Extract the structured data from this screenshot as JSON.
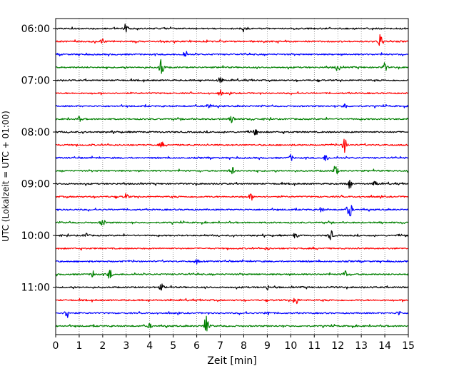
{
  "chart_data": {
    "type": "line",
    "title": "",
    "xlabel": "Zeit  [min]",
    "ylabel": "UTC (Lokalzeit = UTC + 01:00)",
    "xlim": [
      0,
      15
    ],
    "x_ticks": [
      "0",
      "1",
      "2",
      "3",
      "4",
      "5",
      "6",
      "7",
      "8",
      "9",
      "10",
      "11",
      "12",
      "13",
      "14",
      "15"
    ],
    "y_ticks": [
      {
        "label": "06:00",
        "trace": 0
      },
      {
        "label": "07:00",
        "trace": 4
      },
      {
        "label": "08:00",
        "trace": 8
      },
      {
        "label": "09:00",
        "trace": 12
      },
      {
        "label": "10:00",
        "trace": 16
      },
      {
        "label": "11:00",
        "trace": 20
      }
    ],
    "grid": "vertical-dotted",
    "color_cycle": [
      "#000000",
      "#ff0000",
      "#0000ff",
      "#008000"
    ],
    "traces": [
      {
        "start": "06:00",
        "events": [
          [
            3.0,
            7
          ],
          [
            8.0,
            5
          ]
        ]
      },
      {
        "start": "06:15",
        "events": [
          [
            13.8,
            10
          ],
          [
            2.0,
            4
          ]
        ]
      },
      {
        "start": "06:30",
        "events": [
          [
            5.5,
            5
          ]
        ]
      },
      {
        "start": "06:45",
        "events": [
          [
            4.5,
            14
          ],
          [
            12.0,
            5
          ],
          [
            14.0,
            6
          ]
        ]
      },
      {
        "start": "07:00",
        "events": [
          [
            7.0,
            4
          ]
        ]
      },
      {
        "start": "07:15",
        "events": [
          [
            7.0,
            3
          ]
        ]
      },
      {
        "start": "07:30",
        "events": [
          [
            6.5,
            4
          ],
          [
            12.3,
            4
          ]
        ]
      },
      {
        "start": "07:45",
        "events": [
          [
            7.5,
            5
          ],
          [
            1.0,
            3
          ]
        ]
      },
      {
        "start": "08:00",
        "events": [
          [
            8.5,
            4
          ]
        ]
      },
      {
        "start": "08:15",
        "events": [
          [
            12.3,
            10
          ],
          [
            4.5,
            3
          ]
        ]
      },
      {
        "start": "08:30",
        "events": [
          [
            10.0,
            4
          ],
          [
            11.5,
            5
          ]
        ]
      },
      {
        "start": "08:45",
        "events": [
          [
            7.5,
            6
          ],
          [
            11.9,
            8
          ]
        ]
      },
      {
        "start": "09:00",
        "events": [
          [
            12.5,
            7
          ],
          [
            13.6,
            4
          ]
        ]
      },
      {
        "start": "09:15",
        "events": [
          [
            3.0,
            4
          ],
          [
            8.3,
            4
          ]
        ]
      },
      {
        "start": "09:30",
        "events": [
          [
            12.5,
            13
          ],
          [
            11.3,
            3
          ]
        ]
      },
      {
        "start": "09:45",
        "events": [
          [
            2.0,
            5
          ]
        ]
      },
      {
        "start": "10:00",
        "events": [
          [
            11.7,
            7
          ],
          [
            10.2,
            4
          ],
          [
            1.3,
            4
          ]
        ]
      },
      {
        "start": "10:15",
        "events": [
          [
            9.0,
            2
          ]
        ]
      },
      {
        "start": "10:30",
        "events": [
          [
            6.0,
            3
          ]
        ]
      },
      {
        "start": "10:45",
        "events": [
          [
            2.3,
            7
          ],
          [
            1.6,
            5
          ],
          [
            12.3,
            5
          ]
        ]
      },
      {
        "start": "11:00",
        "events": [
          [
            4.5,
            4
          ],
          [
            9.0,
            3
          ]
        ]
      },
      {
        "start": "11:15",
        "events": [
          [
            10.2,
            8
          ]
        ]
      },
      {
        "start": "11:30",
        "events": [
          [
            0.5,
            8
          ],
          [
            9.0,
            4
          ],
          [
            14.6,
            3
          ]
        ]
      },
      {
        "start": "11:45",
        "events": [
          [
            6.4,
            14
          ],
          [
            4.0,
            3
          ]
        ]
      }
    ]
  }
}
